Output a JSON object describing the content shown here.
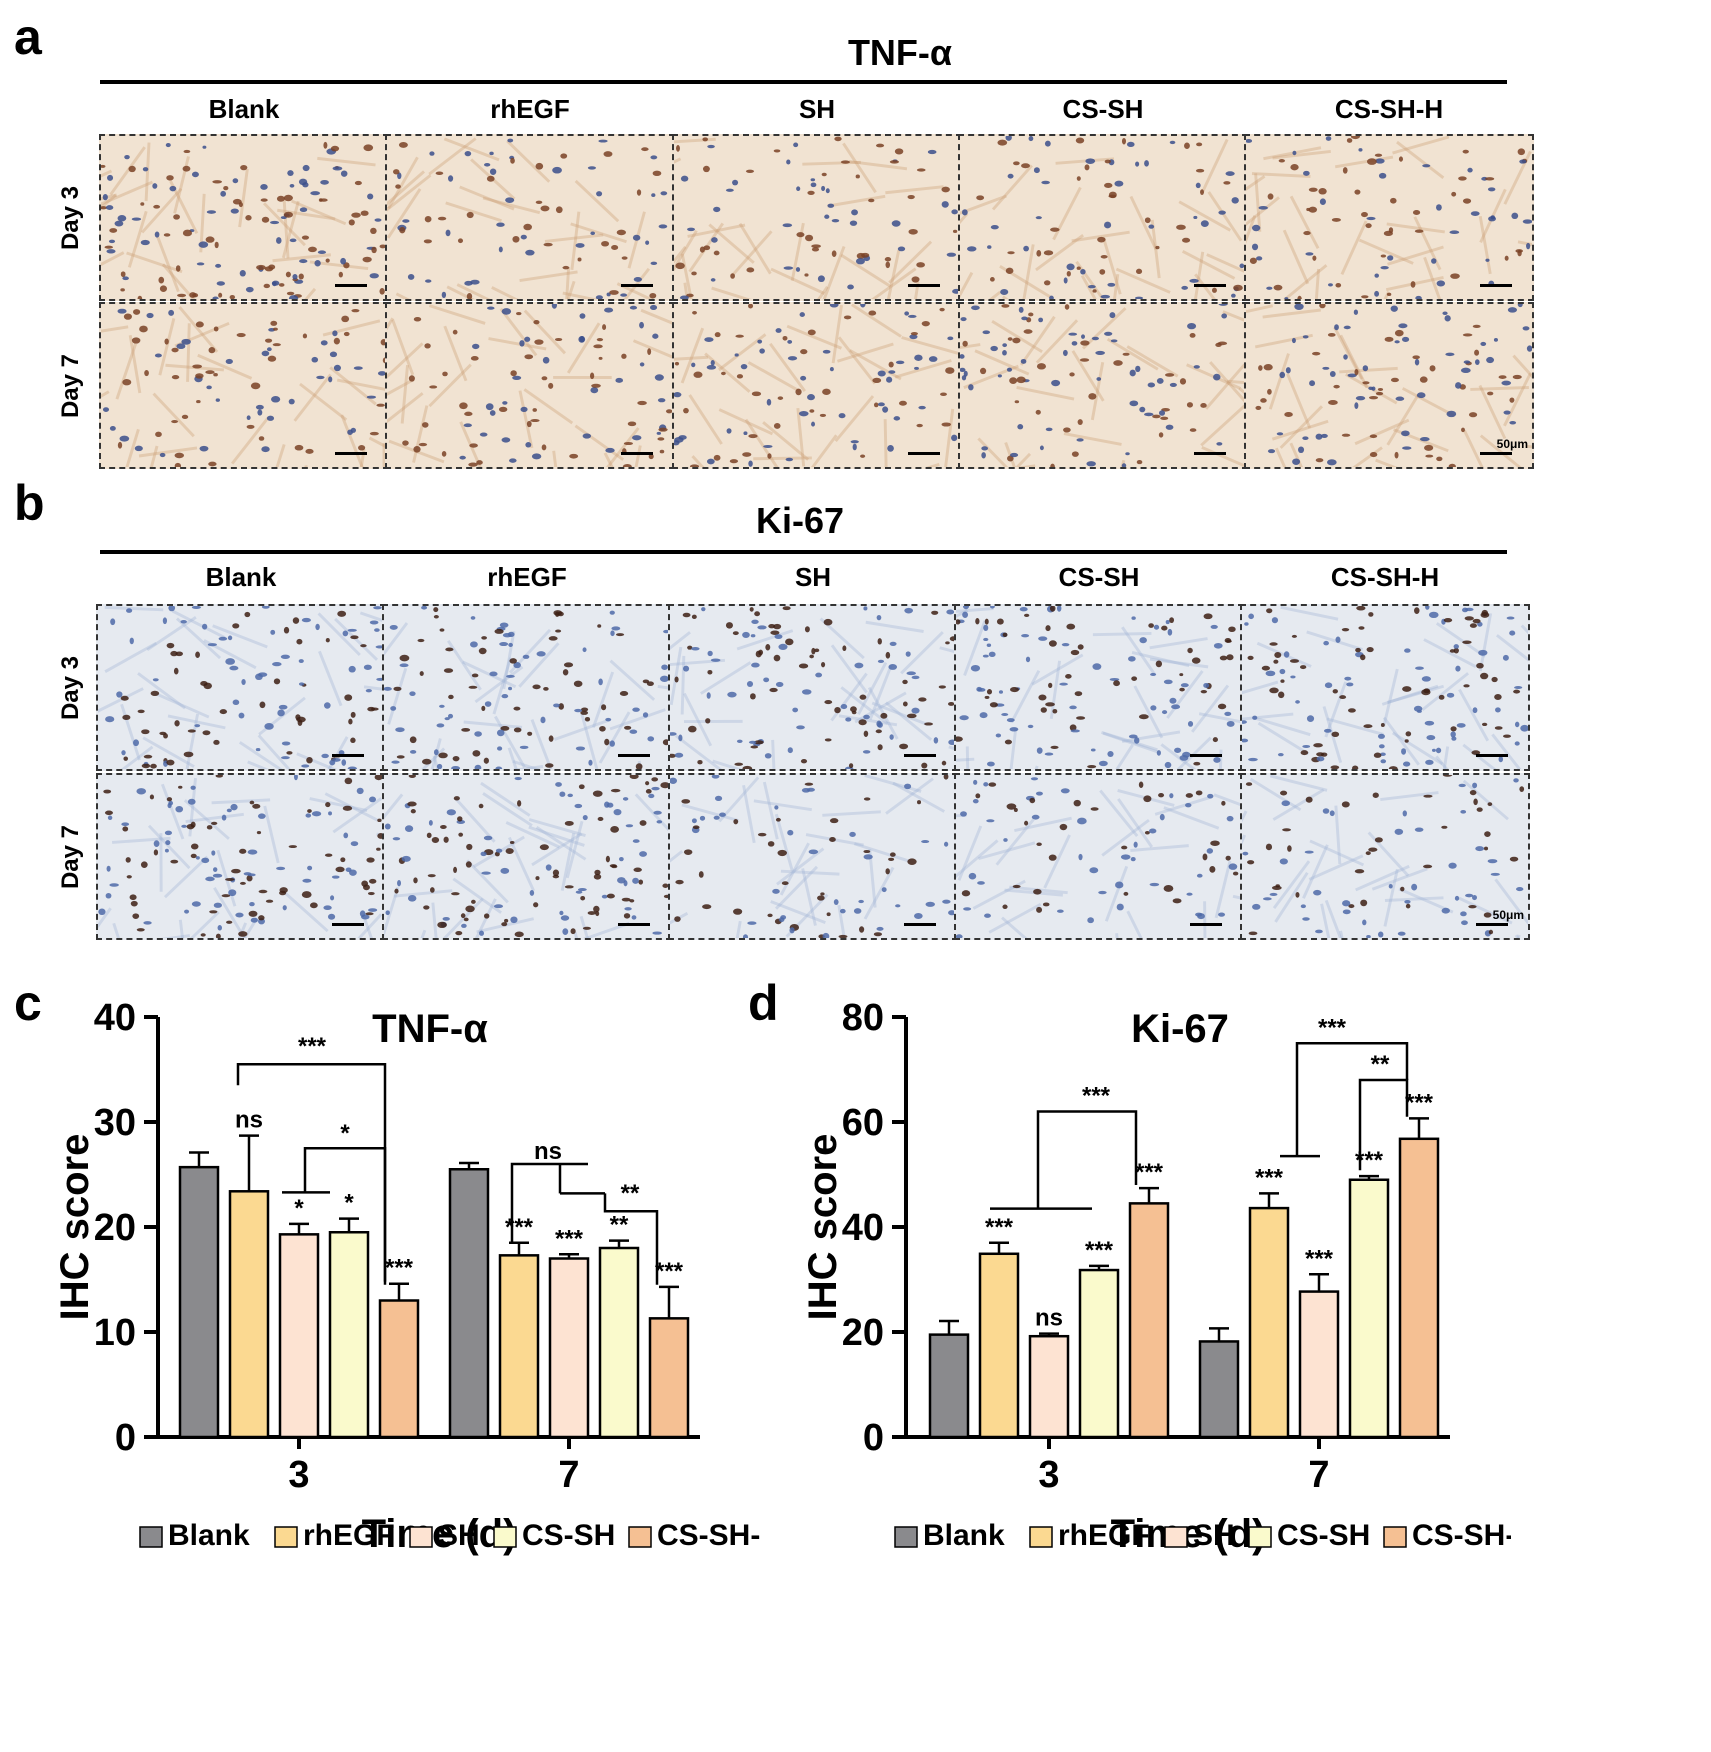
{
  "panels": {
    "a": {
      "letter": "a",
      "title": "TNF-α"
    },
    "b": {
      "letter": "b",
      "title": "Ki-67"
    },
    "c": {
      "letter": "c"
    },
    "d": {
      "letter": "d"
    }
  },
  "micrograph_columns": [
    "Blank",
    "rhEGF",
    "SH",
    "CS-SH",
    "CS-SH-H"
  ],
  "micrograph_rows": [
    "Day 3",
    "Day 7"
  ],
  "scale_label": "50μm",
  "colors": {
    "Blank": "#8a8a8d",
    "rhEGF": "#fbd991",
    "SH": "#fde3d2",
    "CS-SH": "#fafacc",
    "CS-SH-H": "#f5c093",
    "tnf_bg": "#f1e3d2",
    "ki_bg": "#e6eaf0"
  },
  "chart_data": [
    {
      "type": "bar",
      "title": "TNF-α",
      "xlabel": "Time (d)",
      "ylabel": "IHC score",
      "categories": [
        "3",
        "7"
      ],
      "ylim": [
        0,
        40
      ],
      "yticks": [
        0,
        10,
        20,
        30,
        40
      ],
      "series": [
        {
          "name": "Blank",
          "values": [
            25.7,
            25.5
          ],
          "errors": [
            1.4,
            0.6
          ]
        },
        {
          "name": "rhEGF",
          "values": [
            23.4,
            17.3
          ],
          "errors": [
            5.3,
            1.2
          ]
        },
        {
          "name": "SH",
          "values": [
            19.3,
            17.0
          ],
          "errors": [
            1.0,
            0.4
          ]
        },
        {
          "name": "CS-SH",
          "values": [
            19.5,
            18.0
          ],
          "errors": [
            1.3,
            0.7
          ]
        },
        {
          "name": "CS-SH-H",
          "values": [
            13.0,
            11.3
          ],
          "errors": [
            1.6,
            3.0
          ]
        }
      ],
      "bar_labels": [
        [
          "",
          "ns",
          "*",
          "*",
          "***"
        ],
        [
          "",
          "***",
          "***",
          "**",
          "***"
        ]
      ],
      "brackets": [
        {
          "label": "***"
        },
        {
          "label": "*"
        },
        {
          "label": "ns"
        },
        {
          "label": "**"
        }
      ],
      "legend": [
        "Blank",
        "rhEGF",
        "SH",
        "CS-SH",
        "CS-SH-H"
      ],
      "legend_position": "bottom"
    },
    {
      "type": "bar",
      "title": "Ki-67",
      "xlabel": "Time (d)",
      "ylabel": "IHC score",
      "categories": [
        "3",
        "7"
      ],
      "ylim": [
        0,
        80
      ],
      "yticks": [
        0,
        20,
        40,
        60,
        80
      ],
      "series": [
        {
          "name": "Blank",
          "values": [
            19.5,
            18.2
          ],
          "errors": [
            2.6,
            2.5
          ]
        },
        {
          "name": "rhEGF",
          "values": [
            34.9,
            43.6
          ],
          "errors": [
            2.1,
            2.8
          ]
        },
        {
          "name": "SH",
          "values": [
            19.2,
            27.7
          ],
          "errors": [
            0.5,
            3.3
          ]
        },
        {
          "name": "CS-SH",
          "values": [
            31.8,
            49.0
          ],
          "errors": [
            0.8,
            0.7
          ]
        },
        {
          "name": "CS-SH-H",
          "values": [
            44.5,
            56.8
          ],
          "errors": [
            2.9,
            3.9
          ]
        }
      ],
      "bar_labels": [
        [
          "",
          "***",
          "ns",
          "***",
          "***"
        ],
        [
          "",
          "***",
          "***",
          "***",
          "***"
        ]
      ],
      "brackets": [
        {
          "label": "***"
        },
        {
          "label": "***"
        },
        {
          "label": "**"
        }
      ],
      "legend": [
        "Blank",
        "rhEGF",
        "SH",
        "CS-SH",
        "CS-SH-H"
      ],
      "legend_position": "bottom"
    }
  ]
}
